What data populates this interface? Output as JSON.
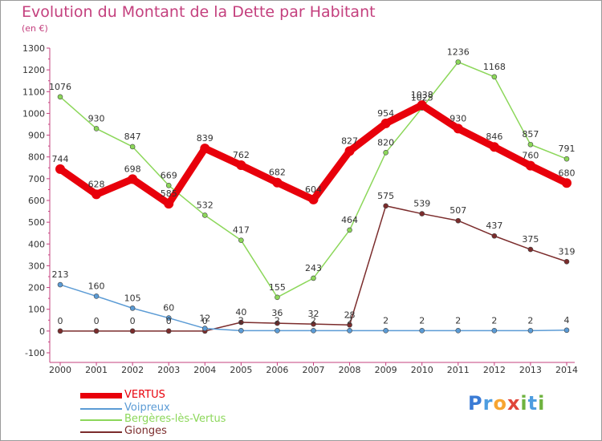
{
  "title": "Evolution du Montant de la Dette par Habitant",
  "subtitle": "(en €)",
  "logo": {
    "text": "Proxiti",
    "letters": [
      "P",
      "r",
      "o",
      "x",
      "i",
      "t",
      "i"
    ],
    "letter_colors": [
      "#3a7bd5",
      "#4d9de0",
      "#f7a531",
      "#e0453a",
      "#6fb33f",
      "#4d9de0",
      "#6fb33f"
    ]
  },
  "legend": [
    {
      "label": "VERTUS",
      "color": "#e8000b"
    },
    {
      "label": "Voipreux",
      "color": "#5b9bd5"
    },
    {
      "label": "Bergères-lès-Vertus",
      "color": "#8cd75a"
    },
    {
      "label": "Gionges",
      "color": "#7b2c2c"
    }
  ],
  "chart_data": {
    "type": "line",
    "title": "Evolution du Montant de la Dette par Habitant",
    "subtitle": "(en €)",
    "x": [
      2000,
      2001,
      2002,
      2003,
      2004,
      2005,
      2006,
      2007,
      2008,
      2009,
      2010,
      2011,
      2012,
      2013,
      2014
    ],
    "ylim": [
      -100,
      1300
    ],
    "yticks": [
      -100,
      0,
      100,
      200,
      300,
      400,
      500,
      600,
      700,
      800,
      900,
      1000,
      1100,
      1200,
      1300
    ],
    "grid": false,
    "legend_position": "bottom-left",
    "series": [
      {
        "name": "VERTUS",
        "color": "#e8000b",
        "values": [
          744,
          628,
          698,
          585,
          839,
          762,
          682,
          604,
          827,
          954,
          1038,
          930,
          846,
          760,
          680
        ]
      },
      {
        "name": "Voipreux",
        "color": "#5b9bd5",
        "values": [
          213,
          160,
          105,
          60,
          12,
          2,
          2,
          2,
          2,
          2,
          2,
          2,
          2,
          2,
          4
        ]
      },
      {
        "name": "Bergères-lès-Vertus",
        "color": "#8cd75a",
        "values": [
          1076,
          930,
          847,
          669,
          532,
          417,
          155,
          243,
          464,
          820,
          1025,
          1236,
          1168,
          857,
          791
        ]
      },
      {
        "name": "Gionges",
        "color": "#7b2c2c",
        "values": [
          0,
          0,
          0,
          0,
          0,
          40,
          36,
          32,
          28,
          575,
          539,
          507,
          437,
          375,
          319
        ]
      }
    ],
    "point_labels": {
      "VERTUS": [
        "744",
        "628",
        "698",
        "585",
        "839",
        "762",
        "682",
        "604",
        "827",
        "954",
        "1038",
        "930",
        "846",
        "760",
        "680"
      ],
      "Voipreux": [
        "213",
        "160",
        "105",
        "60",
        "12",
        "2",
        "2",
        "2",
        "2",
        "2",
        "2",
        "2",
        "2",
        "2",
        "4"
      ],
      "Bergères-lès-Vertus": [
        "1076",
        "930",
        "847",
        "669",
        "532",
        "417",
        "155",
        "243",
        "464",
        "820",
        "1025",
        "1236",
        "1168",
        "857",
        "791"
      ],
      "Gionges": [
        "0",
        "0",
        "0",
        "0",
        "0",
        "40",
        "36",
        "32",
        "28",
        "575",
        "539",
        "507",
        "437",
        "375",
        "319"
      ]
    }
  }
}
